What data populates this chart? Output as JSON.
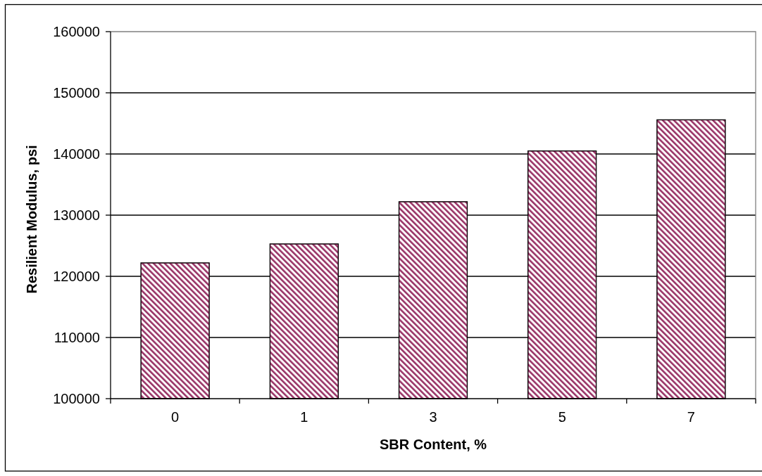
{
  "chart_data": {
    "type": "bar",
    "categories": [
      "0",
      "1",
      "3",
      "5",
      "7"
    ],
    "values": [
      122200,
      125300,
      132200,
      140500,
      145600
    ],
    "color": "#993366",
    "xlabel": "SBR Content, %",
    "ylabel": "Resilient Modulus, psi",
    "ylim": [
      100000,
      160000
    ],
    "yticks": [
      100000,
      110000,
      120000,
      130000,
      140000,
      150000,
      160000
    ],
    "grid": "y"
  }
}
